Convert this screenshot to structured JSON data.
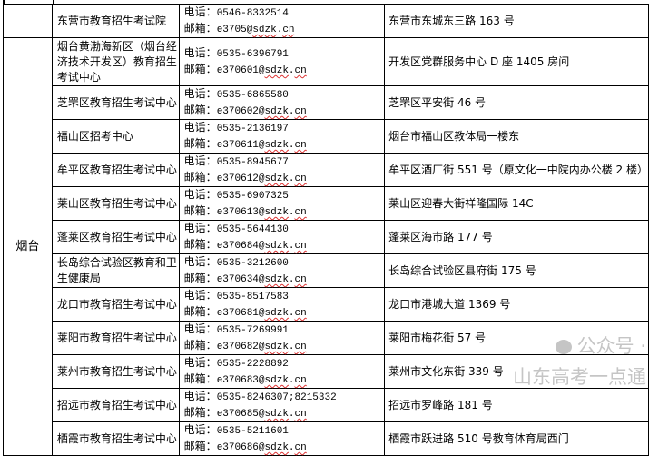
{
  "labels": {
    "phone": "电话：",
    "email": "邮箱：",
    "email_domain": "sdzk",
    "email_tld": "cn"
  },
  "rows": [
    {
      "region": "",
      "name": "东营市教育招生考试院",
      "phone": "0546-8332514",
      "email_user": "e3705",
      "address": "东营市东城东三路 163 号"
    },
    {
      "region": "烟台",
      "name": "烟台黄渤海新区（烟台经济技术开发区）教育招生考试中心",
      "phone": "0535-6396791",
      "email_user": "e370601",
      "address": "开发区党群服务中心 D 座 1405 房间"
    },
    {
      "name": "芝罘区教育招生考试中心",
      "phone": "0535-6865580",
      "email_user": "e370602",
      "address": "芝罘区平安街 46 号"
    },
    {
      "name": "福山区招考中心",
      "phone": "0535-2136197",
      "email_user": "e370611",
      "address": "烟台市福山区教体局一楼东"
    },
    {
      "name": "牟平区教育招生考试中心",
      "phone": "0535-8945677",
      "email_user": "e370612",
      "address": "牟平区酒厂街 551 号（原文化一中院内办公楼 2 楼）"
    },
    {
      "name": "莱山区教育招生考试中心",
      "phone": "0535-6907325",
      "email_user": "e370613",
      "address": "莱山区迎春大街祥隆国际 14C"
    },
    {
      "name": "蓬莱区教育招生考试中心",
      "phone": "0535-5644130",
      "email_user": "e370684",
      "address": "蓬莱区海市路 177 号"
    },
    {
      "name": "长岛综合试验区教育和卫生健康局",
      "phone": "0535-3212600",
      "email_user": "e370634",
      "address": "长岛综合试验区县府街 175 号"
    },
    {
      "name": "龙口市教育招生考试中心",
      "phone": "0535-8517583",
      "email_user": "e370681",
      "address": "龙口市港城大道 1369 号"
    },
    {
      "name": "莱阳市教育招生考试中心",
      "phone": "0535-7269991",
      "email_user": "e370682",
      "address": "莱阳市梅花街 57 号"
    },
    {
      "name": "莱州市教育招生考试中心",
      "phone": "0535-2228892",
      "email_user": "e370683",
      "address": "莱州市文化东街 339 号"
    },
    {
      "name": "招远市教育招生考试中心",
      "phone": "0535-8246307;8215332",
      "email_user": "e370685",
      "address": "招远市罗峰路 181 号"
    },
    {
      "name": "栖霞市教育招生考试中心",
      "phone": "0535-5211601",
      "email_user": "e370686",
      "address": "栖霞市跃进路 510 号教育体育局西门"
    }
  ],
  "watermark": "公众号 · 山东高考一点通"
}
